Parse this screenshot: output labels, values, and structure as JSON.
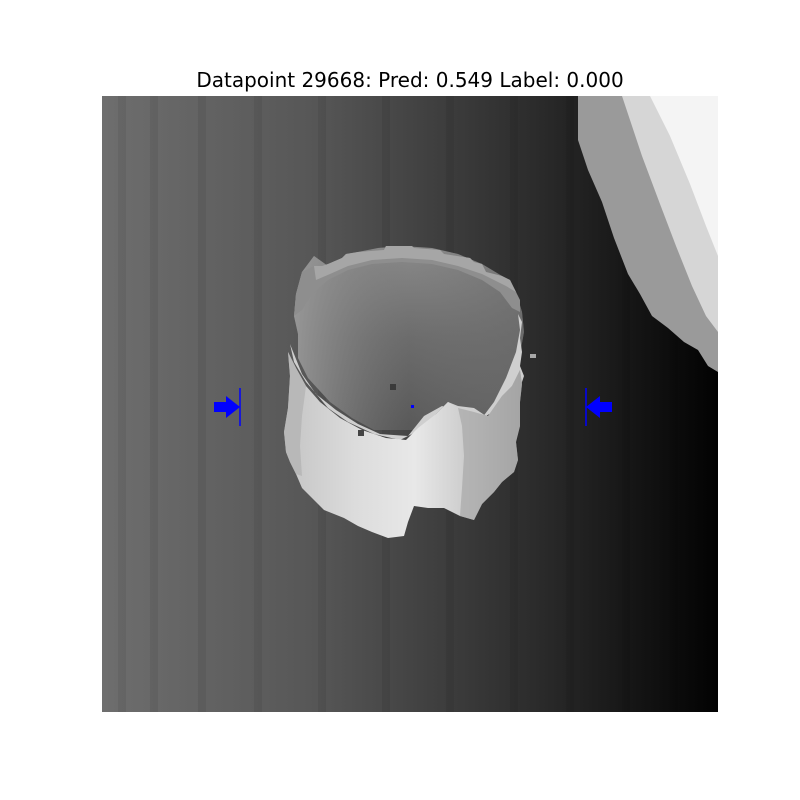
{
  "figure": {
    "title": "Datapoint 29668: Pred: 0.549 Label: 0.000"
  },
  "image": {
    "description_colormap": "grayscale",
    "marker_color": "#0000ff"
  },
  "icons": {
    "left_marker": "arrow-right-icon",
    "right_marker": "arrow-left-icon"
  }
}
